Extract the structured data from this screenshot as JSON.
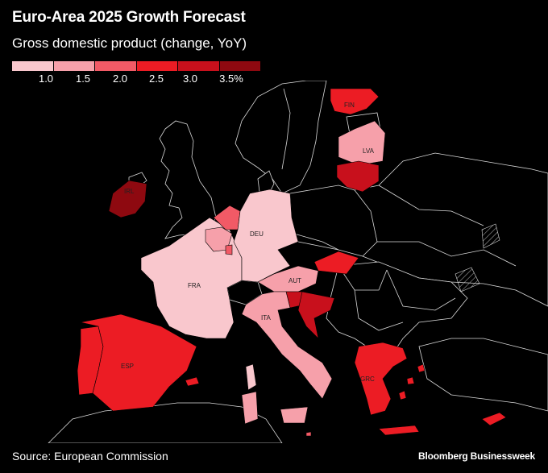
{
  "header": {
    "title": "Euro-Area 2025 Growth Forecast",
    "subtitle": "Gross domestic product (change, YoY)"
  },
  "legend": {
    "colors": [
      "#f9c7cd",
      "#f6a0aa",
      "#f25a66",
      "#ec1c24",
      "#c8101c",
      "#8e0910"
    ],
    "ticks": [
      "1.0",
      "1.5",
      "2.0",
      "2.5",
      "3.0",
      "3.5%"
    ]
  },
  "map": {
    "country_labels": {
      "fin": "FIN",
      "lva": "LVA",
      "irl": "IRL",
      "deu": "DEU",
      "fra": "FRA",
      "aut": "AUT",
      "ita": "ITA",
      "esp": "ESP",
      "grc": "GRC"
    }
  },
  "footer": {
    "source": "Source: European Commission",
    "brand": "Bloomberg Businessweek"
  }
}
